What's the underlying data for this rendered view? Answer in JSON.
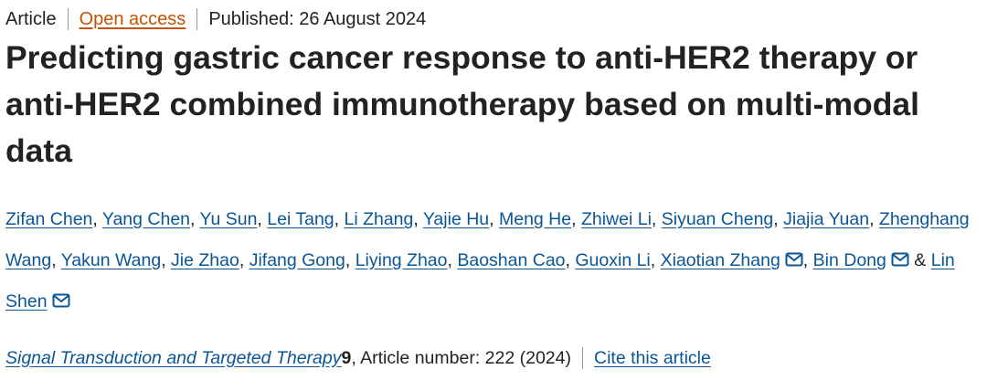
{
  "meta": {
    "type": "Article",
    "access": "Open access",
    "published": "Published: 26 August 2024"
  },
  "title": "Predicting gastric cancer response to anti-HER2 therapy or anti-HER2 combined immunotherapy based on multi-modal data",
  "authors": [
    {
      "name": "Zifan Chen",
      "separator": ","
    },
    {
      "name": "Yang Chen",
      "separator": ","
    },
    {
      "name": "Yu Sun",
      "separator": ","
    },
    {
      "name": "Lei Tang",
      "separator": ","
    },
    {
      "name": "Li Zhang",
      "separator": ","
    },
    {
      "name": "Yajie Hu",
      "separator": ","
    },
    {
      "name": "Meng He",
      "separator": ","
    },
    {
      "name": "Zhiwei Li",
      "separator": ","
    },
    {
      "name": "Siyuan Cheng",
      "separator": ","
    },
    {
      "name": "Jiajia Yuan",
      "separator": ","
    },
    {
      "name": "Zhenghang Wang",
      "separator": ","
    },
    {
      "name": "Yakun Wang",
      "separator": ","
    },
    {
      "name": "Jie Zhao",
      "separator": ","
    },
    {
      "name": "Jifang Gong",
      "separator": ","
    },
    {
      "name": "Liying Zhao",
      "separator": ","
    },
    {
      "name": "Baoshan Cao",
      "separator": ","
    },
    {
      "name": "Guoxin Li",
      "separator": ","
    },
    {
      "name": "Xiaotian Zhang",
      "email": true,
      "separator": ","
    },
    {
      "name": "Bin Dong",
      "email": true,
      "separator": "&"
    },
    {
      "name": "Lin Shen",
      "email": true
    }
  ],
  "journal": {
    "name": "Signal Transduction and Targeted Therapy",
    "volume": "9",
    "details": ", Article number: 222 (2024)",
    "cite": "Cite this article"
  }
}
